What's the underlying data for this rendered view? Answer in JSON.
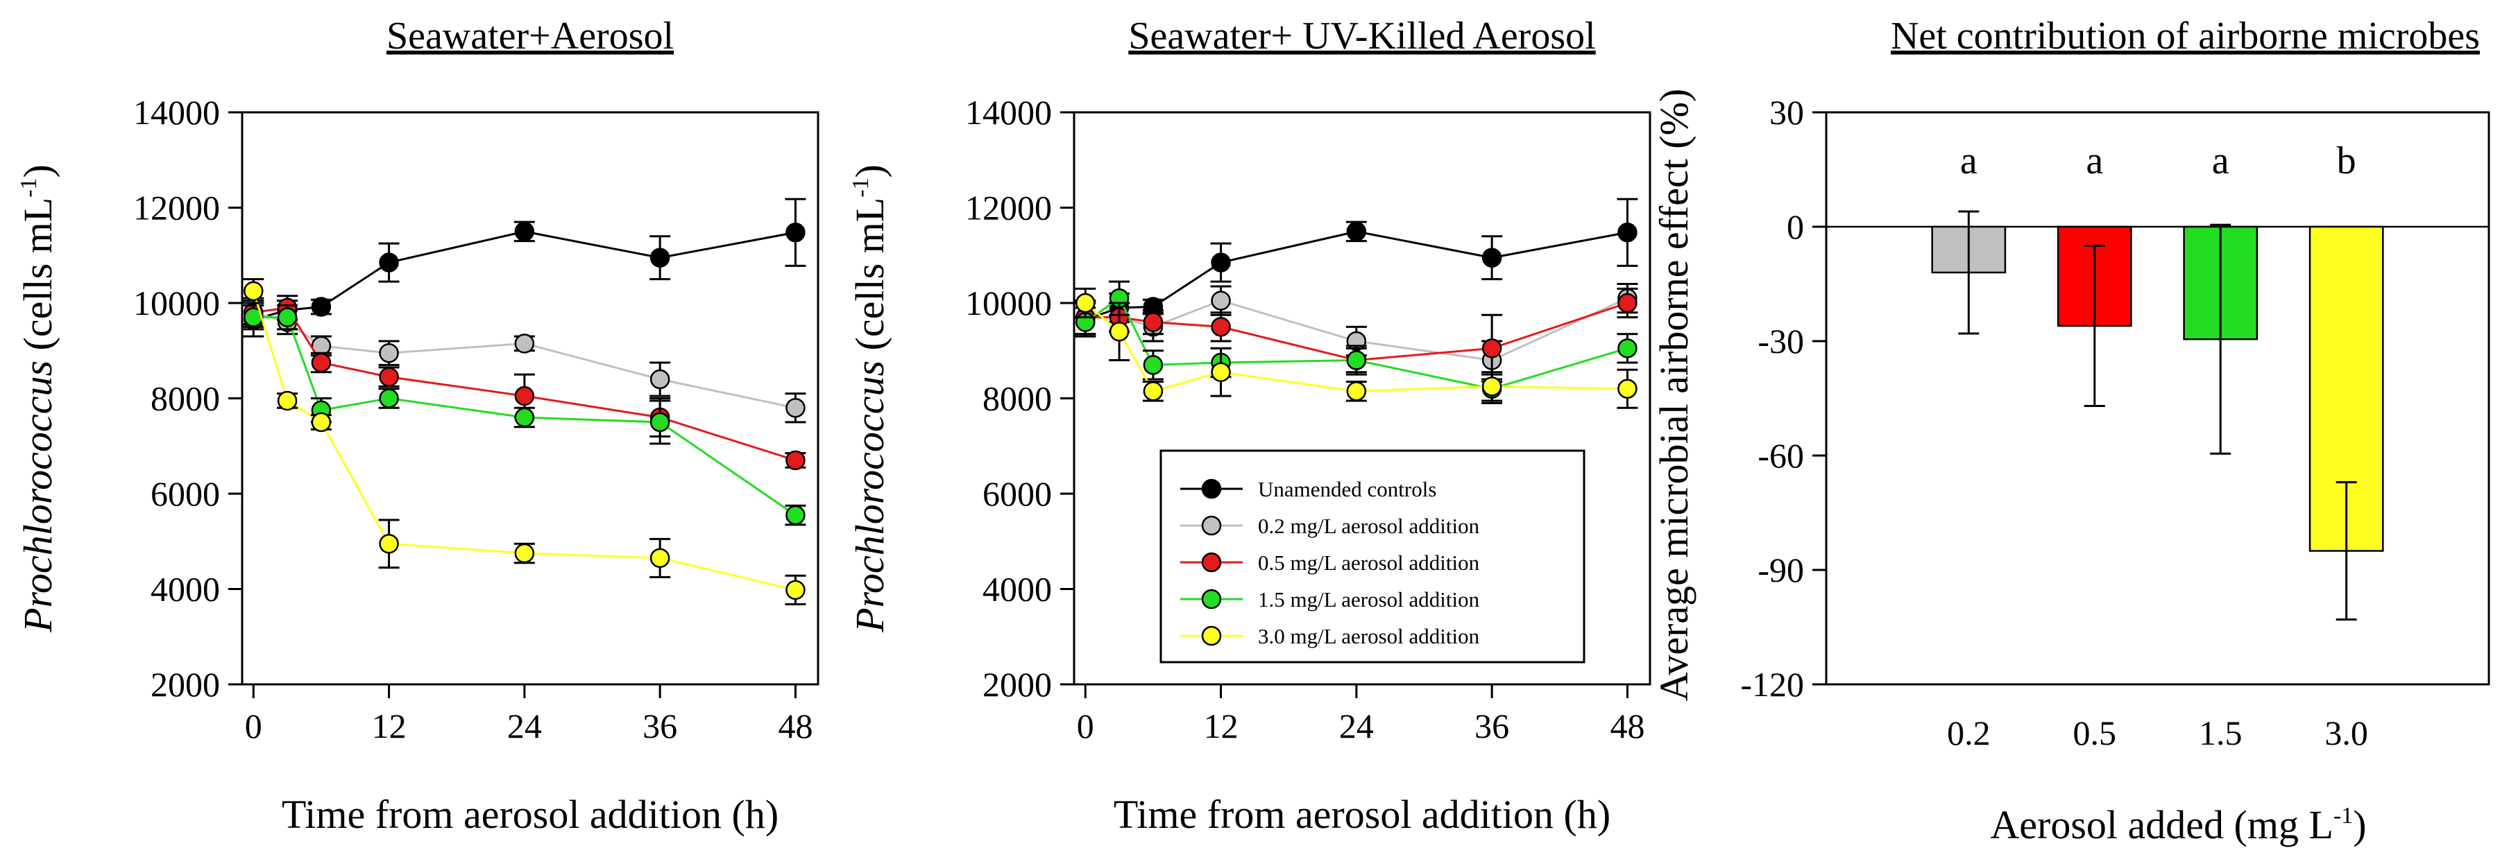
{
  "chart_data": [
    {
      "type": "line",
      "title": "Seawater+Aerosol",
      "xlabel": "Time from aerosol addition (h)",
      "ylabel_italic": "Prochlorococcus",
      "ylabel_units": "(cells mL",
      "ylabel_units_sup": "-1",
      "ylabel_units_close": ")",
      "xlim": [
        -1,
        50
      ],
      "ylim": [
        2000,
        14000
      ],
      "xticks": [
        0,
        12,
        24,
        36,
        48
      ],
      "yticks": [
        2000,
        4000,
        6000,
        8000,
        10000,
        12000,
        14000
      ],
      "grid": false,
      "series": [
        {
          "name": "Unamended controls",
          "color": "#000000",
          "x": [
            0,
            3,
            6,
            12,
            24,
            36,
            48
          ],
          "y": [
            9650,
            9850,
            9920,
            10850,
            11500,
            10950,
            11480
          ],
          "err": [
            350,
            200,
            150,
            400,
            200,
            450,
            700
          ]
        },
        {
          "name": "0.2 mg/L aerosol addition",
          "color": "#c0c0c0",
          "x": [
            0,
            3,
            6,
            12,
            24,
            36,
            48
          ],
          "y": [
            9800,
            9600,
            9100,
            8950,
            9150,
            8400,
            7800
          ],
          "err": [
            300,
            250,
            200,
            250,
            150,
            350,
            300
          ]
        },
        {
          "name": "0.5 mg/L aerosol addition",
          "color": "#e41a1c",
          "x": [
            0,
            3,
            6,
            12,
            24,
            36,
            48
          ],
          "y": [
            9800,
            9900,
            8750,
            8450,
            8050,
            7600,
            6700
          ],
          "err": [
            250,
            250,
            200,
            200,
            450,
            400,
            150
          ]
        },
        {
          "name": "1.5 mg/L aerosol addition",
          "color": "#22dd22",
          "x": [
            0,
            3,
            6,
            12,
            24,
            36,
            48
          ],
          "y": [
            9700,
            9700,
            7750,
            8000,
            7600,
            7500,
            5550
          ],
          "err": [
            250,
            250,
            250,
            200,
            200,
            450,
            200
          ]
        },
        {
          "name": "3.0 mg/L aerosol addition",
          "color": "#ffff22",
          "x": [
            0,
            3,
            6,
            12,
            24,
            36,
            48
          ],
          "y": [
            10250,
            7950,
            7500,
            4950,
            4750,
            4650,
            3980
          ],
          "err": [
            250,
            150,
            150,
            500,
            200,
            400,
            300
          ]
        }
      ]
    },
    {
      "type": "line",
      "title": "Seawater+ UV-Killed Aerosol",
      "xlabel": "Time from aerosol addition (h)",
      "ylabel_italic": "Prochlorococcus",
      "ylabel_units": "(cells mL",
      "ylabel_units_sup": "-1",
      "ylabel_units_close": ")",
      "xlim": [
        -1,
        50
      ],
      "ylim": [
        2000,
        14000
      ],
      "xticks": [
        0,
        12,
        24,
        36,
        48
      ],
      "yticks": [
        2000,
        4000,
        6000,
        8000,
        10000,
        12000,
        14000
      ],
      "grid": false,
      "legend": {
        "placement": "lower-right",
        "entries": [
          "Unamended controls",
          "0.2 mg/L aerosol addition",
          "0.5 mg/L aerosol addition",
          "1.5 mg/L aerosol addition",
          "3.0 mg/L aerosol addition"
        ]
      },
      "series": [
        {
          "name": "Unamended controls",
          "color": "#000000",
          "x": [
            0,
            3,
            6,
            12,
            24,
            36,
            48
          ],
          "y": [
            9650,
            9900,
            9920,
            10850,
            11500,
            10950,
            11480
          ],
          "err": [
            350,
            300,
            150,
            400,
            200,
            450,
            700
          ]
        },
        {
          "name": "0.2 mg/L aerosol addition",
          "color": "#c0c0c0",
          "x": [
            0,
            3,
            6,
            12,
            24,
            36,
            48
          ],
          "y": [
            9700,
            9700,
            9500,
            10050,
            9200,
            8800,
            10100
          ],
          "err": [
            350,
            300,
            300,
            300,
            300,
            400,
            300
          ]
        },
        {
          "name": "0.5 mg/L aerosol addition",
          "color": "#e41a1c",
          "x": [
            0,
            3,
            6,
            12,
            24,
            36,
            48
          ],
          "y": [
            9700,
            9700,
            9600,
            9500,
            8800,
            9050,
            10000
          ],
          "err": [
            350,
            300,
            250,
            300,
            250,
            700,
            300
          ]
        },
        {
          "name": "1.5 mg/L aerosol addition",
          "color": "#22dd22",
          "x": [
            0,
            3,
            6,
            12,
            24,
            36,
            48
          ],
          "y": [
            9600,
            10100,
            8700,
            8750,
            8800,
            8200,
            9050
          ],
          "err": [
            300,
            350,
            300,
            300,
            300,
            300,
            300
          ]
        },
        {
          "name": "3.0 mg/L aerosol addition",
          "color": "#ffff22",
          "x": [
            0,
            3,
            6,
            12,
            24,
            36,
            48
          ],
          "y": [
            10000,
            9400,
            8150,
            8550,
            8150,
            8250,
            8200
          ],
          "err": [
            300,
            600,
            200,
            500,
            200,
            300,
            400
          ]
        }
      ]
    },
    {
      "type": "bar",
      "title": "Net contribution of airborne microbes",
      "xlabel": "Aerosol added (mg L",
      "xlabel_sup": "-1",
      "xlabel_close": ")",
      "ylabel": "Average microbial airborne effect (%)",
      "ylim": [
        -120,
        30
      ],
      "yticks": [
        -120,
        -90,
        -60,
        -30,
        0,
        30
      ],
      "grid": false,
      "categories": [
        "0.2",
        "0.5",
        "1.5",
        "3.0"
      ],
      "values": [
        -12,
        -26,
        -29.5,
        -85
      ],
      "errors": [
        16,
        21,
        30,
        18
      ],
      "colors": [
        "#c0c0c0",
        "#ff0000",
        "#22dd22",
        "#ffff22"
      ],
      "significance_labels": [
        "a",
        "a",
        "a",
        "b"
      ]
    }
  ]
}
